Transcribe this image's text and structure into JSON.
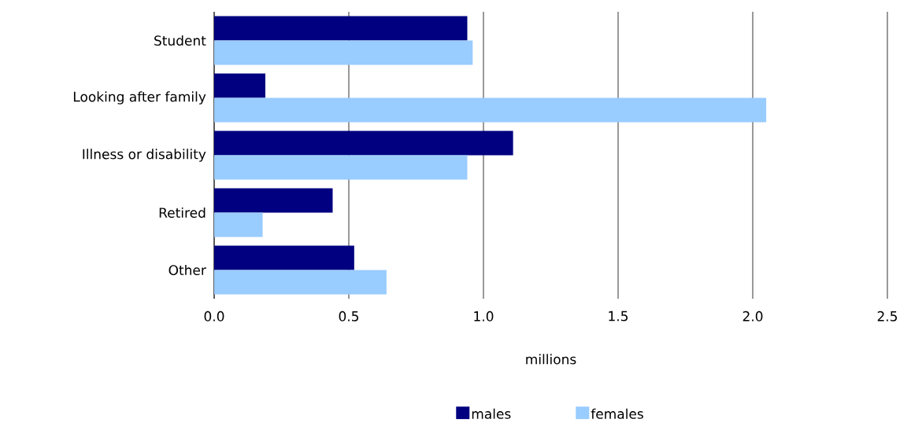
{
  "chart_data": {
    "type": "bar",
    "orientation": "horizontal",
    "xlabel": "millions",
    "categories": [
      "Student",
      "Looking after family",
      "Illness or disability",
      "Retired",
      "Other"
    ],
    "series": [
      {
        "name": "males",
        "color": "#000080",
        "values": [
          0.94,
          0.19,
          1.11,
          0.44,
          0.52
        ]
      },
      {
        "name": "females",
        "color": "#99ccff",
        "values": [
          0.96,
          2.05,
          0.94,
          0.18,
          0.64
        ]
      }
    ],
    "xlim": [
      0,
      2.5
    ],
    "xticks": [
      {
        "value": 0,
        "label": "0.0"
      },
      0.5,
      {
        "value": 1,
        "label": "1.0"
      },
      1.5,
      {
        "value": 2,
        "label": "2.0"
      },
      2.5
    ],
    "grid": "x",
    "legend": "bottom"
  }
}
